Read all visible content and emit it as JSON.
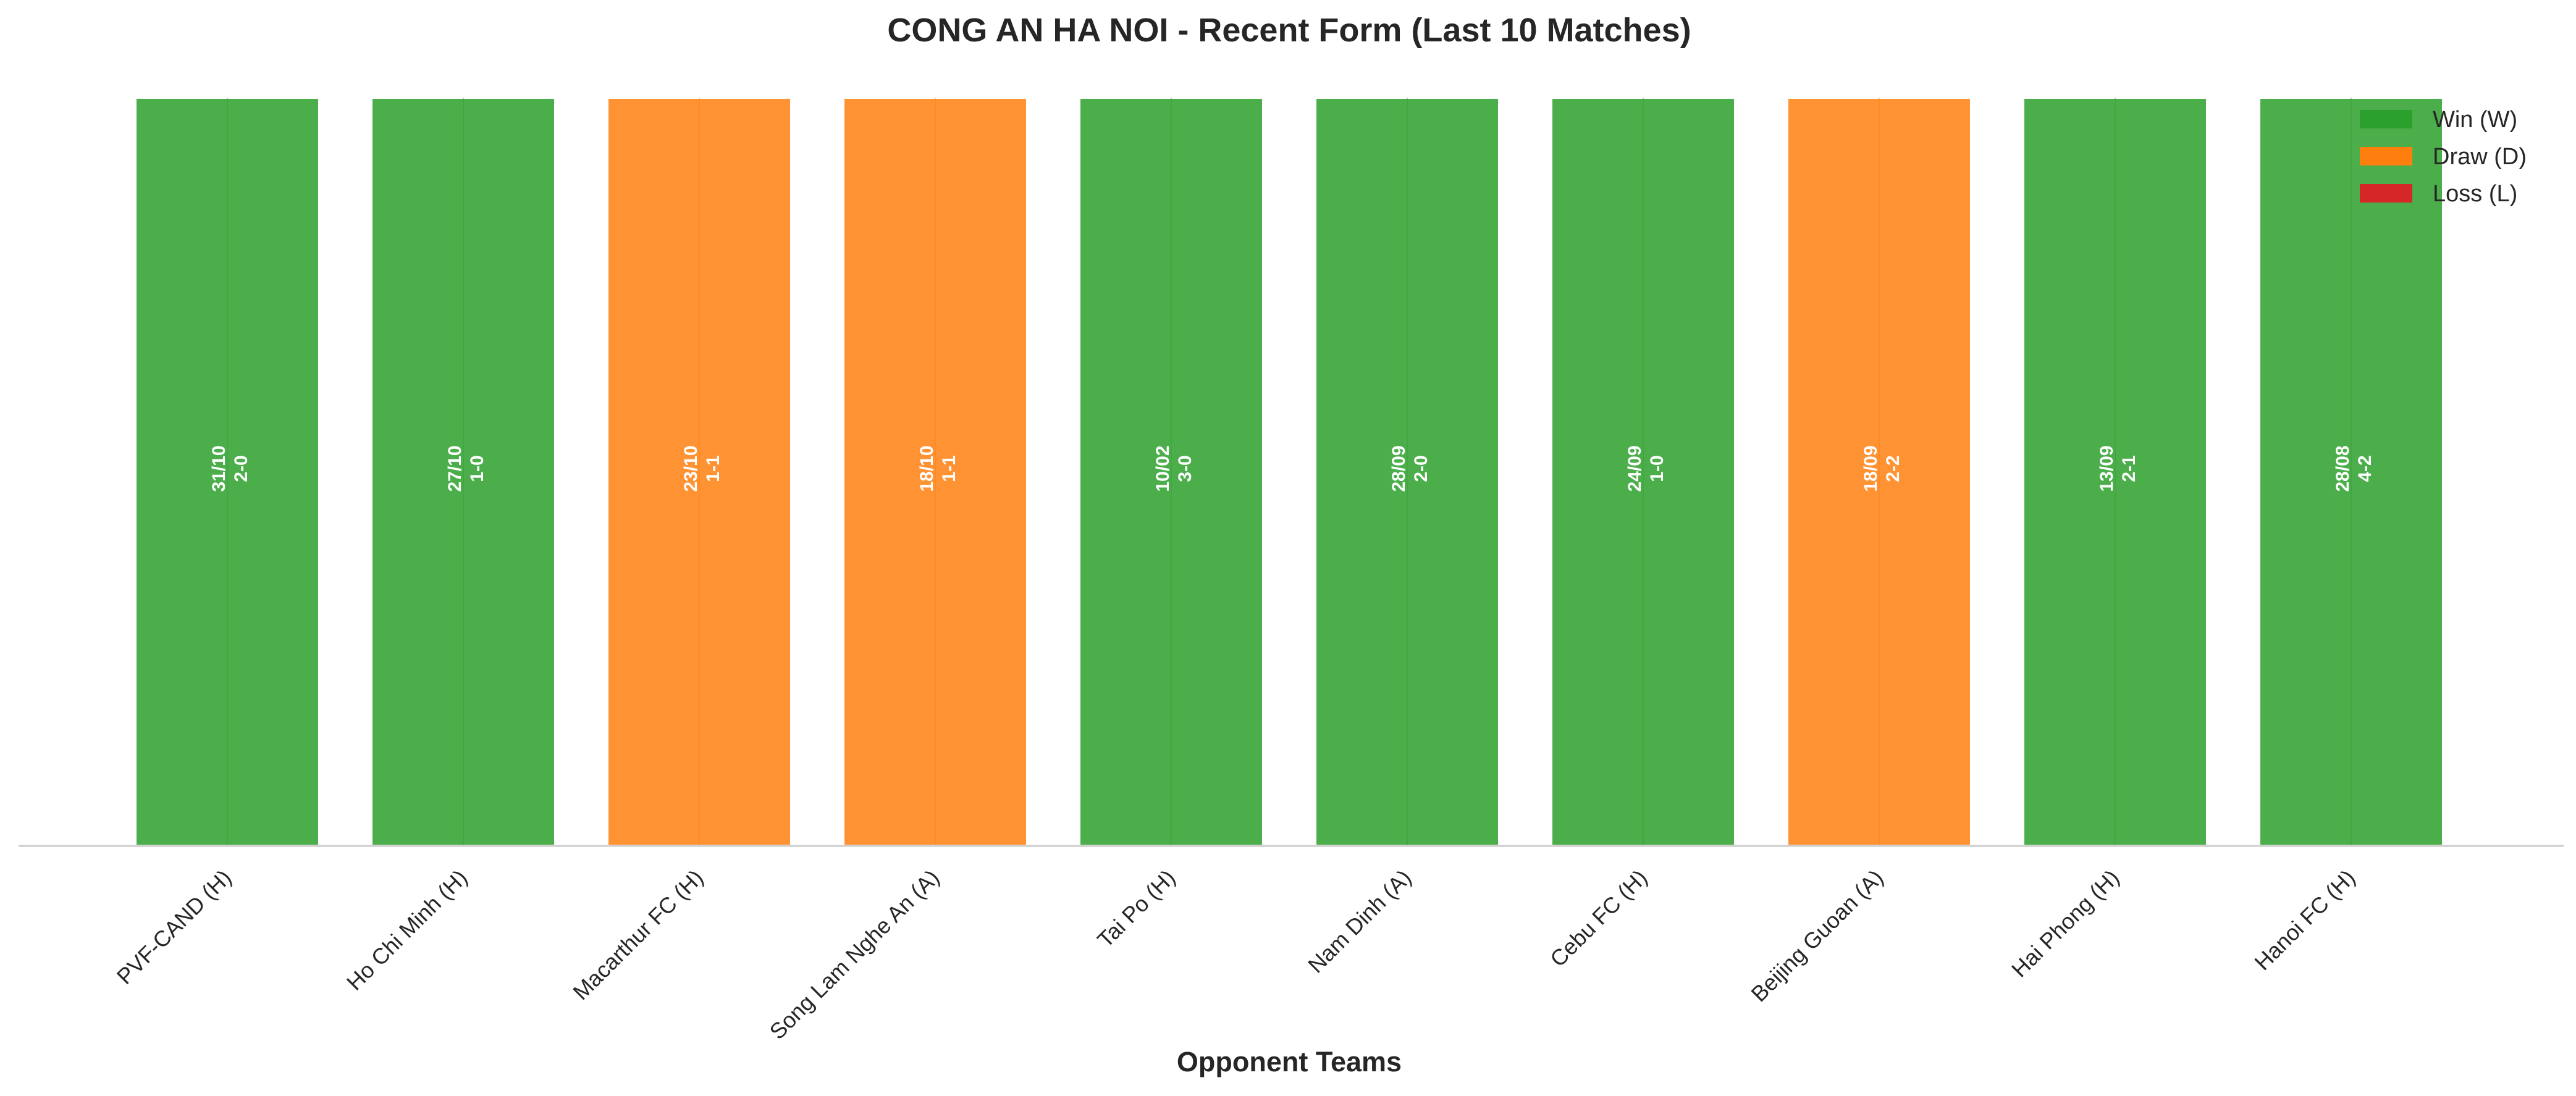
{
  "chart_data": {
    "type": "bar",
    "title": "CONG AN HA NOI - Recent Form (Last 10 Matches)",
    "xlabel": "Opponent Teams",
    "ylabel": "",
    "categories": [
      "PVF-CAND (H)",
      "Ho Chi Minh (H)",
      "Macarthur FC (H)",
      "Song Lam Nghe An (A)",
      "Tai Po (H)",
      "Nam Dinh (A)",
      "Cebu FC (H)",
      "Beijing Guoan (A)",
      "Hai Phong (H)",
      "Hanoi FC (H)"
    ],
    "values": [
      1,
      1,
      1,
      1,
      1,
      1,
      1,
      1,
      1,
      1
    ],
    "results": [
      "W",
      "W",
      "D",
      "D",
      "W",
      "W",
      "W",
      "D",
      "W",
      "W"
    ],
    "dates": [
      "31/10",
      "27/10",
      "23/10",
      "18/10",
      "10/02",
      "28/09",
      "24/09",
      "18/09",
      "13/09",
      "28/08"
    ],
    "scores": [
      "2-0",
      "1-0",
      "1-1",
      "1-1",
      "3-0",
      "2-0",
      "1-0",
      "2-2",
      "2-1",
      "4-2"
    ],
    "legend": [
      {
        "key": "W",
        "label": "Win (W)",
        "color": "#2ca02c"
      },
      {
        "key": "D",
        "label": "Draw (D)",
        "color": "#ff7f0e"
      },
      {
        "key": "L",
        "label": "Loss (L)",
        "color": "#d62728"
      }
    ],
    "legend_position": "top-right",
    "grid": false
  }
}
